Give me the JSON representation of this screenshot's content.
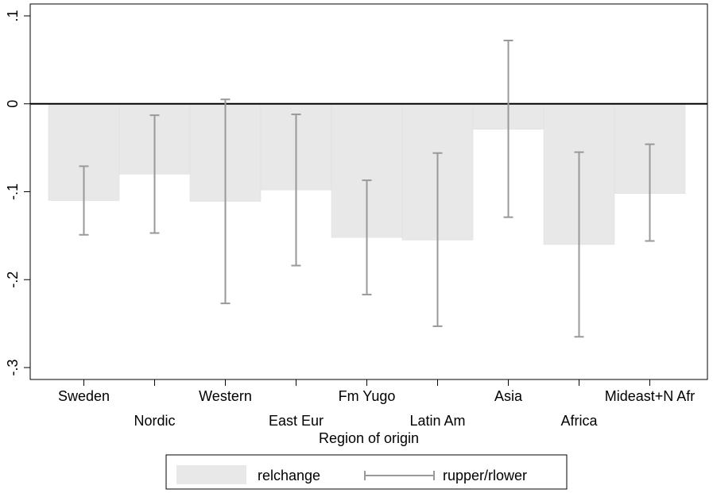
{
  "chart_data": {
    "type": "bar",
    "categories": [
      "Sweden",
      "Nordic",
      "Western",
      "East Eur",
      "Fm Yugo",
      "Latin Am",
      "Asia",
      "Africa",
      "Mideast+N Afr"
    ],
    "series": [
      {
        "name": "relchange",
        "values": [
          -0.11,
          -0.08,
          -0.111,
          -0.098,
          -0.152,
          -0.155,
          -0.029,
          -0.16,
          -0.102
        ]
      }
    ],
    "error_bars": {
      "name": "rupper/rlower",
      "upper": [
        -0.071,
        -0.013,
        0.005,
        -0.012,
        -0.087,
        -0.056,
        0.072,
        -0.055,
        -0.046
      ],
      "lower": [
        -0.149,
        -0.147,
        -0.227,
        -0.184,
        -0.217,
        -0.253,
        -0.129,
        -0.265,
        -0.156
      ]
    },
    "ylim": [
      -0.3,
      0.1
    ],
    "yticks": [
      0.1,
      0,
      -0.1,
      -0.2,
      -0.3
    ],
    "ytick_labels": [
      ".1",
      "0",
      "-.1",
      "-.2",
      "-.3"
    ],
    "xlabel": "Region of origin",
    "ylabel": "",
    "title": "",
    "grid": false,
    "legend_position": "bottom",
    "colors": {
      "bar": "#e8e8e8",
      "errorbar": "#999999",
      "zero_line": "#000000"
    }
  }
}
